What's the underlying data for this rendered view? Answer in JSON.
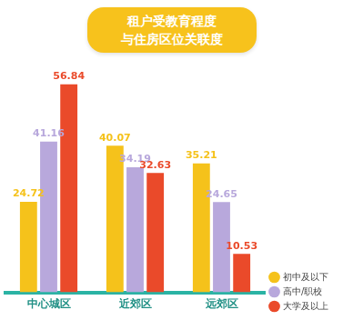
{
  "chart_data": {
    "type": "bar",
    "title": [
      "租户受教育程度",
      "与住房区位关联度"
    ],
    "categories": [
      "中心城区",
      "近郊区",
      "远郊区"
    ],
    "series": [
      {
        "name": "初中及以下",
        "color": "#f5c21b",
        "values": [
          24.72,
          40.07,
          35.21
        ]
      },
      {
        "name": "高中/职校",
        "color": "#b8a8dc",
        "values": [
          41.16,
          34.19,
          24.65
        ]
      },
      {
        "name": "大学及以上",
        "color": "#ea4a2a",
        "values": [
          56.84,
          32.63,
          10.53
        ]
      }
    ],
    "data_labels": true,
    "tick_labels": "x",
    "legend": "lower right",
    "grid": false
  }
}
